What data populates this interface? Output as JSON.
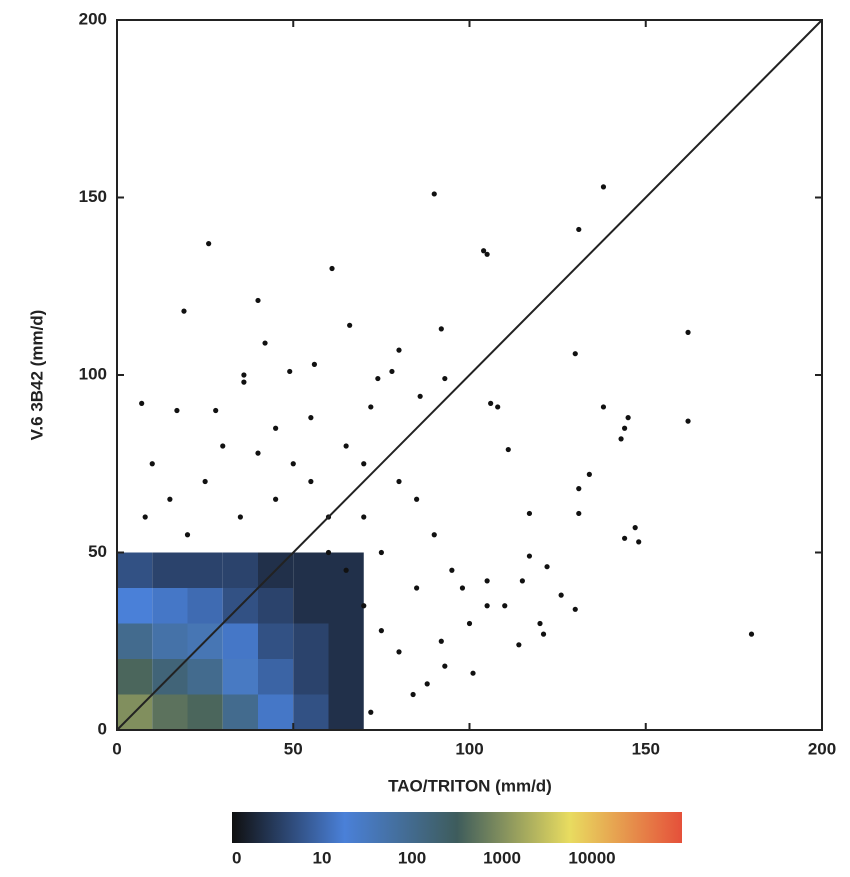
{
  "chart_data": {
    "type": "hist2d",
    "xlabel": "TAO/TRITON (mm/d)",
    "ylabel": "V.6 3B42 (mm/d)",
    "xlim": [
      0,
      200
    ],
    "ylim": [
      0,
      200
    ],
    "xticks": [
      0,
      50,
      100,
      150,
      200
    ],
    "yticks": [
      0,
      50,
      100,
      150,
      200
    ],
    "xbins": [
      0,
      10,
      20,
      30,
      40,
      50,
      60,
      70
    ],
    "ybins": [
      0,
      10,
      20,
      30,
      40,
      50
    ],
    "counts": [
      [
        250,
        150,
        120,
        40,
        8,
        3,
        1
      ],
      [
        120,
        60,
        40,
        15,
        5,
        2,
        1
      ],
      [
        40,
        25,
        20,
        8,
        3,
        2,
        1
      ],
      [
        10,
        8,
        6,
        3,
        2,
        1,
        1
      ],
      [
        3,
        2,
        2,
        2,
        1,
        1,
        1
      ]
    ],
    "points": {
      "x": [
        90,
        138,
        26,
        131,
        104,
        105,
        61,
        19,
        40,
        162,
        66,
        92,
        42,
        130,
        80,
        56,
        36,
        36,
        49,
        74,
        93,
        78,
        17,
        7,
        28,
        138,
        145,
        144,
        162,
        106,
        108,
        86,
        72,
        143,
        111,
        134,
        131,
        147,
        148,
        144,
        131,
        117,
        117,
        122,
        115,
        126,
        130,
        120,
        121,
        114,
        101,
        93,
        180,
        72,
        84,
        88,
        100,
        105,
        98,
        95,
        90,
        85,
        80,
        70,
        65,
        55,
        45,
        60,
        75,
        85,
        105,
        110,
        92,
        80,
        75,
        70,
        65,
        55,
        50,
        40,
        30,
        25,
        15,
        10,
        8,
        20,
        35,
        45,
        60,
        70
      ],
      "y": [
        151,
        153,
        137,
        141,
        135,
        134,
        130,
        118,
        121,
        112,
        114,
        113,
        109,
        106,
        107,
        103,
        100,
        98,
        101,
        99,
        99,
        101,
        90,
        92,
        90,
        91,
        88,
        85,
        87,
        92,
        91,
        94,
        91,
        82,
        79,
        72,
        68,
        57,
        53,
        54,
        61,
        61,
        49,
        46,
        42,
        38,
        34,
        30,
        27,
        24,
        16,
        18,
        27,
        5,
        10,
        13,
        30,
        35,
        40,
        45,
        55,
        65,
        70,
        75,
        80,
        88,
        85,
        60,
        50,
        40,
        42,
        35,
        25,
        22,
        28,
        35,
        45,
        70,
        75,
        78,
        80,
        70,
        65,
        75,
        60,
        55,
        60,
        65,
        50,
        60
      ]
    },
    "colorbar": {
      "ticks": [
        0,
        10,
        100,
        1000,
        10000
      ],
      "colors": [
        "#101010",
        "#4a80d8",
        "#3e5c5c",
        "#e8dc60",
        "#e5503a"
      ]
    }
  }
}
